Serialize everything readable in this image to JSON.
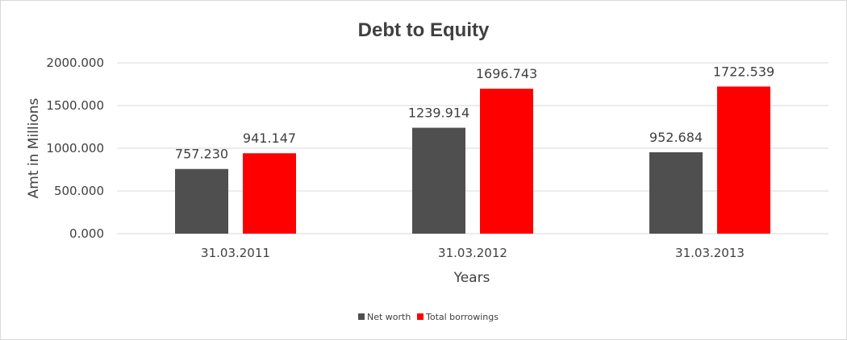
{
  "chart_data": {
    "type": "bar",
    "title": "Debt to Equity",
    "xlabel": "Years",
    "ylabel": "Amt in Millions",
    "categories": [
      "31.03.2011",
      "31.03.2012",
      "31.03.2013"
    ],
    "series": [
      {
        "name": "Net worth",
        "values": [
          757.23,
          1239.914,
          952.684
        ],
        "labels": [
          "757.230",
          "1239.914",
          "952.684"
        ],
        "color": "#4f4f4f"
      },
      {
        "name": "Total borrowings",
        "values": [
          941.147,
          1696.743,
          1722.539
        ],
        "labels": [
          "941.147",
          "1696.743",
          "1722.539"
        ],
        "color": "#ff0000"
      }
    ],
    "ylim": [
      0,
      2000
    ],
    "yticks": [
      0,
      500,
      1000,
      1500,
      2000
    ],
    "ytick_labels": [
      "0.000",
      "500.000",
      "1000.000",
      "1500.000",
      "2000.000"
    ],
    "grid": true,
    "gridline_color": "#d9d9d9",
    "legend_position": "bottom"
  }
}
